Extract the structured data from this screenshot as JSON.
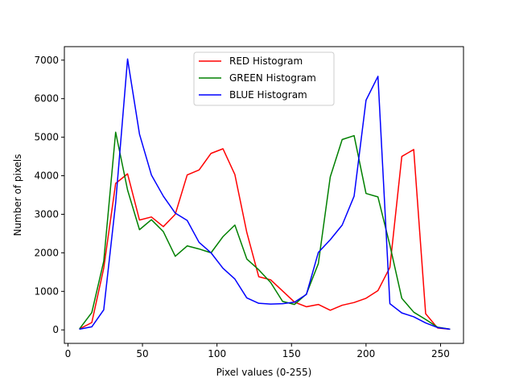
{
  "chart_data": {
    "type": "line",
    "title": "",
    "xlabel": "Pixel values (0-255)",
    "ylabel": "Number of pixels",
    "xlim": [
      -2.4,
      265.4
    ],
    "ylim": [
      -350,
      7350
    ],
    "xticks": [
      0,
      50,
      100,
      150,
      200,
      250
    ],
    "yticks": [
      0,
      1000,
      2000,
      3000,
      4000,
      5000,
      6000,
      7000
    ],
    "grid": false,
    "legend_position": "top-center",
    "x": [
      8,
      16,
      24,
      32,
      40,
      48,
      56,
      64,
      72,
      80,
      88,
      96,
      104,
      112,
      120,
      128,
      136,
      144,
      152,
      160,
      168,
      176,
      184,
      192,
      200,
      208,
      216,
      224,
      232,
      240,
      248,
      256
    ],
    "series": [
      {
        "name": "RED Histogram",
        "color": "#ff0000",
        "values": [
          30,
          190,
          1600,
          3800,
          4050,
          2850,
          2930,
          2680,
          3000,
          4020,
          4150,
          4580,
          4700,
          4030,
          2530,
          1380,
          1300,
          1010,
          720,
          600,
          660,
          510,
          640,
          710,
          820,
          1020,
          1620,
          4500,
          4680,
          420,
          50,
          20
        ]
      },
      {
        "name": "GREEN Histogram",
        "color": "#008000",
        "values": [
          40,
          450,
          1780,
          5130,
          3630,
          2600,
          2860,
          2550,
          1910,
          2180,
          2100,
          2000,
          2420,
          2720,
          1840,
          1560,
          1230,
          740,
          660,
          930,
          1720,
          3970,
          4940,
          5040,
          3540,
          3450,
          2200,
          820,
          460,
          270,
          70,
          20
        ]
      },
      {
        "name": "BLUE Histogram",
        "color": "#0000ff",
        "values": [
          20,
          80,
          520,
          3290,
          7030,
          5080,
          4020,
          3470,
          3030,
          2840,
          2270,
          2000,
          1600,
          1320,
          830,
          690,
          670,
          680,
          720,
          920,
          2010,
          2340,
          2720,
          3470,
          5960,
          6580,
          680,
          440,
          340,
          180,
          60,
          20
        ]
      }
    ]
  }
}
